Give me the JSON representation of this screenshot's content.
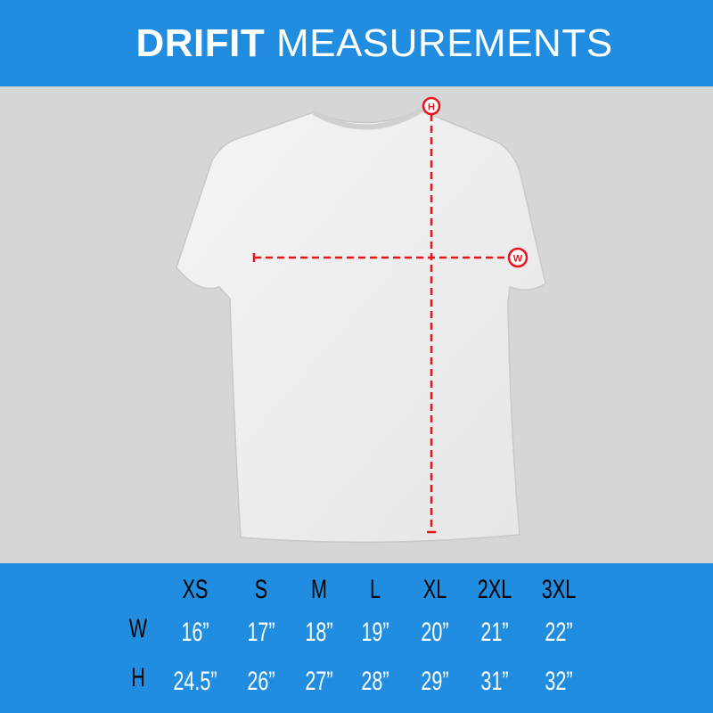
{
  "header": {
    "title_bold": "DRIFIT",
    "title_rest": "MEASUREMENTS"
  },
  "markers": {
    "height": "H",
    "width": "W"
  },
  "colors": {
    "brand_blue": "#218de0",
    "measure_red": "#e8141b"
  },
  "table": {
    "sizes": [
      "XS",
      "S",
      "M",
      "L",
      "XL",
      "2XL",
      "3XL"
    ],
    "rows": [
      {
        "label": "W",
        "values": [
          "16”",
          "17”",
          "18”",
          "19”",
          "20”",
          "21”",
          "22”"
        ]
      },
      {
        "label": "H",
        "values": [
          "24.5”",
          "26”",
          "27”",
          "28”",
          "29”",
          "31”",
          "32”"
        ]
      }
    ]
  }
}
